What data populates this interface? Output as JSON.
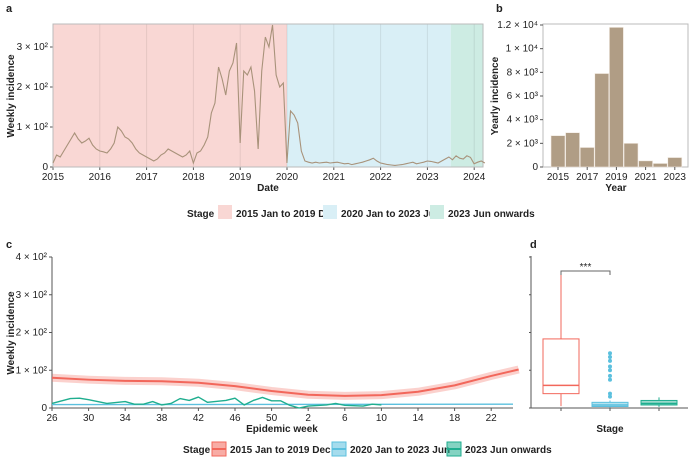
{
  "colors": {
    "stage1": "#f2675b",
    "stage2": "#5bc0de",
    "stage3": "#1fae8f",
    "bg1": "#f9d7d4",
    "bg2": "#d9eff6",
    "bg3": "#cdece3",
    "line": "#a8927a",
    "bar": "#b09d85"
  },
  "legend": {
    "title": "Stage",
    "items": [
      "2015 Jan to 2019 Dec",
      "2020 Jan to 2023 Jun",
      "2023 Jun onwards"
    ]
  },
  "chart_data": [
    {
      "panel": "a",
      "type": "line",
      "xlabel": "Date",
      "ylabel": "Weekly incidence",
      "ylim": [
        0,
        355
      ],
      "x_ticks": [
        "2015",
        "2016",
        "2017",
        "2018",
        "2019",
        "2020",
        "2021",
        "2022",
        "2023",
        "2024"
      ],
      "y_ticks": [
        {
          "v": 0,
          "label": "0"
        },
        {
          "v": 100,
          "label": "1 × 10²"
        },
        {
          "v": 200,
          "label": "2 × 10²"
        },
        {
          "v": 300,
          "label": "3 × 10²"
        }
      ],
      "stages": [
        {
          "name": "2015 Jan to 2019 Dec",
          "from": 2015,
          "to": 2020
        },
        {
          "name": "2020 Jan to 2023 Jun",
          "from": 2020,
          "to": 2023.5
        },
        {
          "name": "2023 Jun onwards",
          "from": 2023.5,
          "to": 2024.2
        }
      ],
      "x_start": 2015,
      "step_years": 0.0769,
      "values": [
        10,
        30,
        25,
        40,
        55,
        70,
        85,
        70,
        60,
        65,
        72,
        55,
        45,
        40,
        38,
        35,
        45,
        60,
        100,
        90,
        75,
        70,
        60,
        45,
        35,
        30,
        25,
        20,
        15,
        20,
        30,
        35,
        45,
        40,
        35,
        30,
        25,
        30,
        40,
        10,
        35,
        40,
        55,
        75,
        135,
        160,
        250,
        220,
        180,
        240,
        260,
        310,
        60,
        240,
        230,
        250,
        190,
        45,
        240,
        325,
        300,
        355,
        230,
        200,
        210,
        10,
        140,
        130,
        110,
        40,
        15,
        12,
        10,
        12,
        10,
        11,
        12,
        10,
        11,
        12,
        10,
        8,
        9,
        6,
        8,
        10,
        12,
        15,
        18,
        22,
        15,
        10,
        8,
        6,
        5,
        4,
        5,
        6,
        8,
        10,
        12,
        8,
        10,
        12,
        15,
        14,
        12,
        10,
        15,
        20,
        25,
        18,
        28,
        22,
        20,
        28,
        24,
        8,
        12,
        15,
        10
      ]
    },
    {
      "panel": "b",
      "type": "bar",
      "xlabel": "Year",
      "ylabel": "Yearly incidence",
      "ylim": [
        0,
        12000
      ],
      "categories": [
        "2015",
        "2016",
        "2017",
        "2018",
        "2019",
        "2020",
        "2021",
        "2022",
        "2023"
      ],
      "x_tick_labels": [
        "2015",
        "2017",
        "2019",
        "2021",
        "2023"
      ],
      "values": [
        2650,
        2900,
        1650,
        7900,
        11800,
        2000,
        520,
        300,
        800
      ],
      "y_ticks": [
        {
          "v": 0,
          "label": "0"
        },
        {
          "v": 2000,
          "label": "2 × 10³"
        },
        {
          "v": 4000,
          "label": "4 × 10³"
        },
        {
          "v": 6000,
          "label": "6 × 10³"
        },
        {
          "v": 8000,
          "label": "8 × 10³"
        },
        {
          "v": 10000,
          "label": "1 × 10⁴"
        },
        {
          "v": 12000,
          "label": "1.2 × 10⁴"
        }
      ]
    },
    {
      "panel": "c",
      "type": "line",
      "xlabel": "Epidemic week",
      "ylabel": "Weekly incidence",
      "ylim": [
        0,
        400
      ],
      "x_ticks": [
        "26",
        "30",
        "34",
        "38",
        "42",
        "46",
        "50",
        "2",
        "6",
        "10",
        "14",
        "18",
        "22"
      ],
      "y_ticks": [
        {
          "v": 0,
          "label": "0"
        },
        {
          "v": 100,
          "label": "1 × 10²"
        },
        {
          "v": 200,
          "label": "2 × 10²"
        },
        {
          "v": 300,
          "label": "3 × 10²"
        },
        {
          "v": 400,
          "label": "4 × 10²"
        }
      ],
      "series": [
        {
          "name": "2015 Jan to 2019 Dec",
          "weeks": [
            26,
            30,
            34,
            38,
            42,
            46,
            50,
            2,
            6,
            10,
            14,
            18,
            22,
            25
          ],
          "values": [
            80,
            75,
            72,
            71,
            67,
            58,
            45,
            35,
            32,
            34,
            43,
            60,
            85,
            102
          ]
        },
        {
          "name": "2020 Jan to 2023 Jun",
          "weeks": [
            26,
            25
          ],
          "values": [
            9,
            10
          ]
        },
        {
          "name": "2023 Jun onwards",
          "weeks": [
            26,
            28,
            29,
            30,
            32,
            34,
            35,
            36,
            37,
            38,
            39,
            40,
            41,
            42,
            43,
            45,
            46,
            47,
            48,
            49,
            50,
            51,
            52,
            1,
            2,
            4,
            5,
            6,
            8,
            9,
            10
          ],
          "values": [
            12,
            25,
            26,
            22,
            12,
            17,
            10,
            10,
            17,
            8,
            12,
            25,
            20,
            29,
            15,
            20,
            26,
            8,
            20,
            28,
            19,
            19,
            7,
            0,
            5,
            8,
            12,
            7,
            5,
            10,
            8
          ]
        }
      ]
    },
    {
      "panel": "d",
      "type": "box",
      "xlabel": "Stage",
      "ylim": [
        0,
        400
      ],
      "significance": "***",
      "groups": [
        {
          "name": "2015 Jan to 2019 Dec",
          "min": 5,
          "q1": 38,
          "median": 60,
          "q3": 183,
          "max": 360,
          "outliers": []
        },
        {
          "name": "2020 Jan to 2023 Jun",
          "min": 1,
          "q1": 4,
          "median": 8,
          "q3": 15,
          "max": 20,
          "outliers": [
            30,
            38,
            75,
            85,
            100,
            110,
            125,
            135,
            145
          ]
        },
        {
          "name": "2023 Jun onwards",
          "min": 3,
          "q1": 8,
          "median": 12,
          "q3": 20,
          "max": 28,
          "outliers": []
        }
      ]
    }
  ]
}
